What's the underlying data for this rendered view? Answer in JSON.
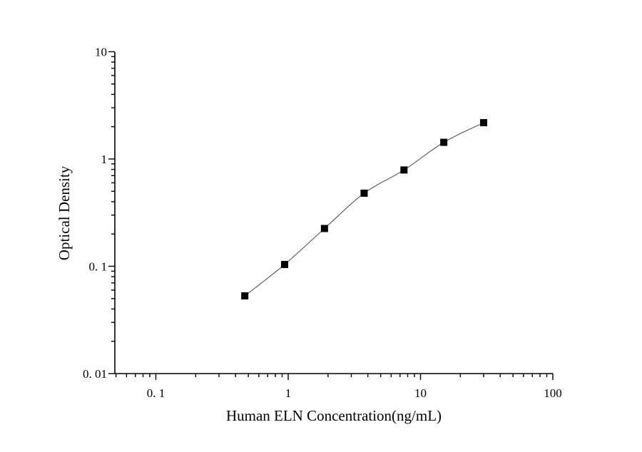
{
  "chart_data": {
    "type": "scatter",
    "title": "",
    "xlabel": "Human ELN Concentration(ng/mL)",
    "ylabel": "Optical Density",
    "x_scale": "log",
    "y_scale": "log",
    "xlim": [
      0.05,
      100
    ],
    "ylim": [
      0.01,
      10
    ],
    "x_ticks": [
      {
        "value": 0.1,
        "label": "0. 1"
      },
      {
        "value": 1,
        "label": "1"
      },
      {
        "value": 10,
        "label": "10"
      },
      {
        "value": 100,
        "label": "100"
      }
    ],
    "y_ticks": [
      {
        "value": 0.01,
        "label": "0. 01"
      },
      {
        "value": 0.1,
        "label": "0. 1"
      },
      {
        "value": 1,
        "label": "1"
      },
      {
        "value": 10,
        "label": "10"
      }
    ],
    "grid": false,
    "legend": "none",
    "colors": {
      "points": "#000000",
      "curve": "#555555",
      "axis": "#000000"
    },
    "series": [
      {
        "name": "",
        "marker": "square",
        "fit_curve": true,
        "x": [
          0.47,
          0.94,
          1.88,
          3.75,
          7.5,
          15,
          30
        ],
        "y": [
          0.053,
          0.104,
          0.225,
          0.48,
          0.79,
          1.43,
          2.18
        ]
      }
    ]
  }
}
